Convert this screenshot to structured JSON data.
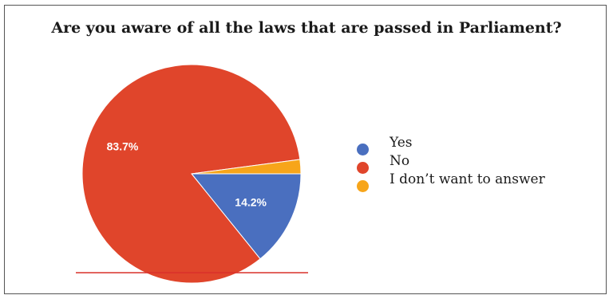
{
  "chart_data": {
    "type": "pie",
    "title": "Are you aware of all the laws that are passed in Parliament?",
    "slices": [
      {
        "name": "Yes",
        "value": 14.2,
        "label": "14.2%",
        "color": "#4a6fbf"
      },
      {
        "name": "No",
        "value": 83.7,
        "label": "83.7%",
        "color": "#e0452b"
      },
      {
        "name": "I don’t want to answer",
        "value": 2.1,
        "label": "",
        "color": "#f7a51a"
      }
    ],
    "legend_placement": "right"
  }
}
